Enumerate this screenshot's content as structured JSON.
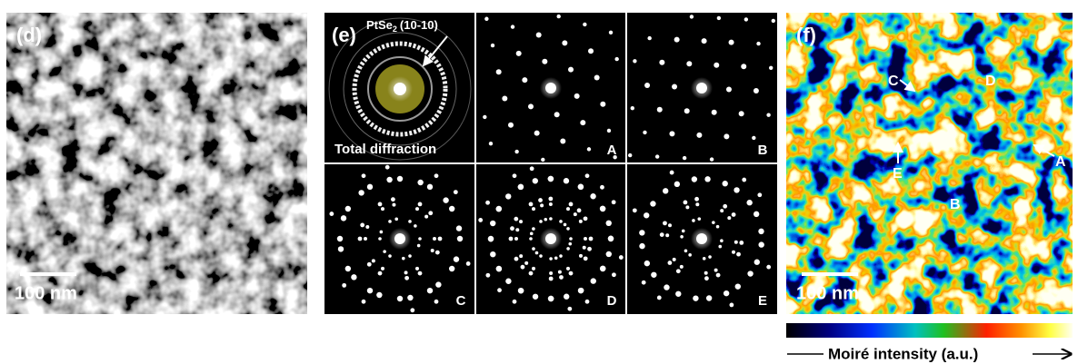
{
  "panels": {
    "d": {
      "label": "(d)",
      "scale_bar": "100 nm"
    },
    "e": {
      "label": "(e)",
      "annotation": {
        "formula": "PtSe",
        "subscript": "2",
        "index": "(10-10)"
      },
      "total": "Total diffraction",
      "subpanels": [
        "A",
        "B",
        "C",
        "D",
        "E"
      ]
    },
    "f": {
      "label": "(f)",
      "markers": [
        "C",
        "D",
        "A",
        "E",
        "B"
      ],
      "scale_bar": "100 nm",
      "colorbar_label": "Moiré intensity (a.u.)"
    }
  }
}
